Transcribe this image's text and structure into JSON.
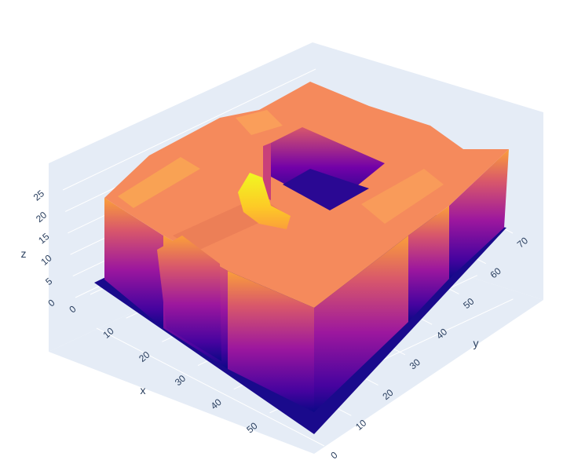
{
  "chart_data": {
    "type": "surface",
    "title": "",
    "axes": {
      "x": {
        "title": "x",
        "range": [
          0,
          58
        ],
        "ticks": [
          "0",
          "10",
          "20",
          "30",
          "40",
          "50"
        ]
      },
      "y": {
        "title": "y",
        "range": [
          0,
          72
        ],
        "ticks": [
          "0",
          "10",
          "20",
          "30",
          "40",
          "50",
          "60",
          "70"
        ]
      },
      "z": {
        "title": "z",
        "range": [
          0,
          27
        ],
        "ticks": [
          "0",
          "5",
          "10",
          "15",
          "20",
          "25"
        ]
      }
    },
    "surface": {
      "description_values": {
        "base_level": 0,
        "plateau_level": 19,
        "courtyard_floor": 0,
        "peak_level": 26
      },
      "courtyard": {
        "x_range": [
          18,
          33
        ],
        "y_range": [
          38,
          56
        ]
      },
      "notch": {
        "x_range": [
          38,
          58
        ],
        "y_range": [
          0,
          13
        ]
      },
      "peak": {
        "x": 17,
        "y": 38,
        "z": 26
      }
    },
    "colorscale": [
      "#0d0887",
      "#46039f",
      "#7201a8",
      "#9c179e",
      "#bd3786",
      "#d8576b",
      "#ed7953",
      "#fb9f3a",
      "#fdca26",
      "#f0f921"
    ],
    "colors": {
      "pane": "#e5ecf6",
      "grid": "#ffffff",
      "text": "#2a3f5f"
    }
  }
}
